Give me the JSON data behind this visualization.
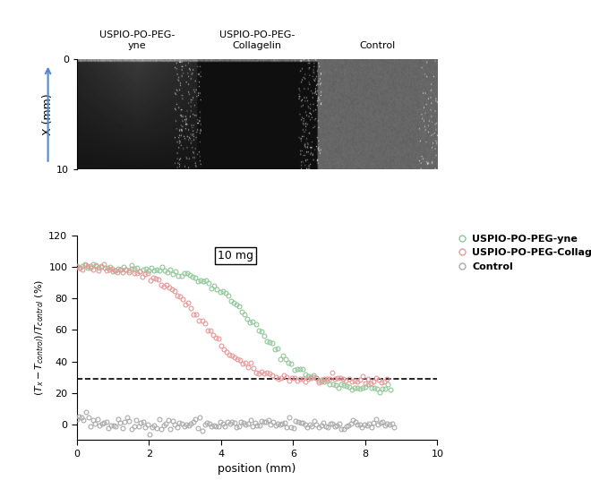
{
  "image_panel": {
    "labels": [
      "USPIO-PO-PEG-\nyne",
      "USPIO-PO-PEG-\nCollagelin",
      "Control"
    ],
    "ylabel": "X (mm)",
    "yticks": [
      0,
      10
    ],
    "arrow_color": "#5588CC"
  },
  "plot": {
    "xlabel": "position (mm)",
    "xlim": [
      0,
      10
    ],
    "ylim": [
      -10,
      120
    ],
    "yticks": [
      0,
      20,
      40,
      60,
      80,
      100,
      120
    ],
    "xticks": [
      0,
      2,
      4,
      6,
      8,
      10
    ],
    "dashed_line_y": 29,
    "green_color": "#90C898",
    "pink_color": "#E89898",
    "gray_color": "#AAAAAA",
    "scalebar_text": "10 mg",
    "scalebar_x": 0.44,
    "scalebar_y": 0.9
  }
}
